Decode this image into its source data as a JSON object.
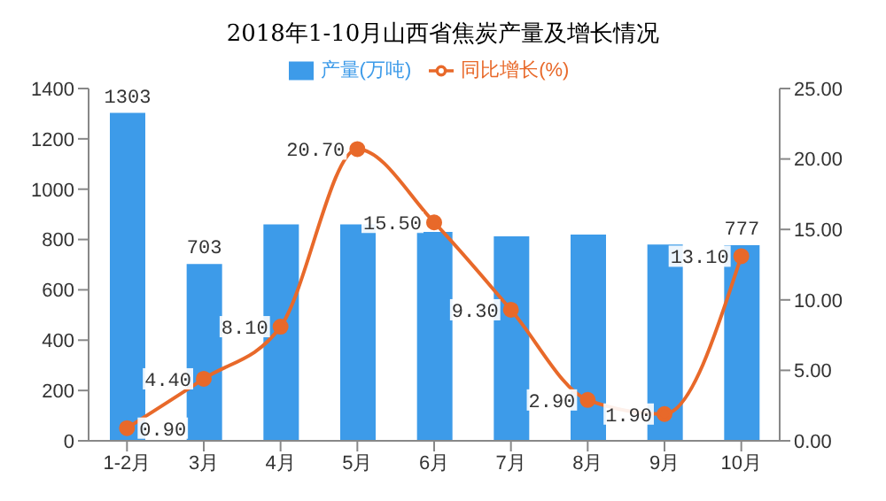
{
  "chart_data": {
    "type": "bar",
    "title": "2018年1-10月山西省焦炭产量及增长情况",
    "categories": [
      "1-2月",
      "3月",
      "4月",
      "5月",
      "6月",
      "7月",
      "8月",
      "9月",
      "10月"
    ],
    "series": [
      {
        "name": "产量(万吨)",
        "color": "#3d9be9",
        "values": [
          1303,
          703,
          860,
          860,
          830,
          813,
          820,
          780,
          777
        ],
        "value_labels": [
          "1303",
          "703",
          null,
          null,
          null,
          null,
          null,
          null,
          "777"
        ]
      },
      {
        "name": "同比增长(%)",
        "type": "line",
        "axis": "y2",
        "color": "#e8692a",
        "values": [
          0.9,
          4.4,
          8.1,
          20.7,
          15.5,
          9.3,
          2.9,
          1.9,
          13.1
        ],
        "value_labels": [
          "0.90",
          "4.40",
          "8.10",
          "20.70",
          "15.50",
          "9.30",
          "2.90",
          "1.90",
          "13.10"
        ]
      }
    ],
    "ylim": [
      0,
      1400
    ],
    "yticks": [
      0,
      200,
      400,
      600,
      800,
      1000,
      1200,
      1400
    ],
    "y2lim": [
      0,
      25
    ],
    "y2ticks": [
      {
        "value": 0,
        "label": "0.00"
      },
      {
        "value": 5,
        "label": "5.00"
      },
      {
        "value": 10,
        "label": "10.00"
      },
      {
        "value": 15,
        "label": "15.00"
      },
      {
        "value": 20,
        "label": "20.00"
      },
      {
        "value": 25,
        "label": "25.00"
      }
    ],
    "legend": "top",
    "marker": "circle",
    "grid": false
  }
}
